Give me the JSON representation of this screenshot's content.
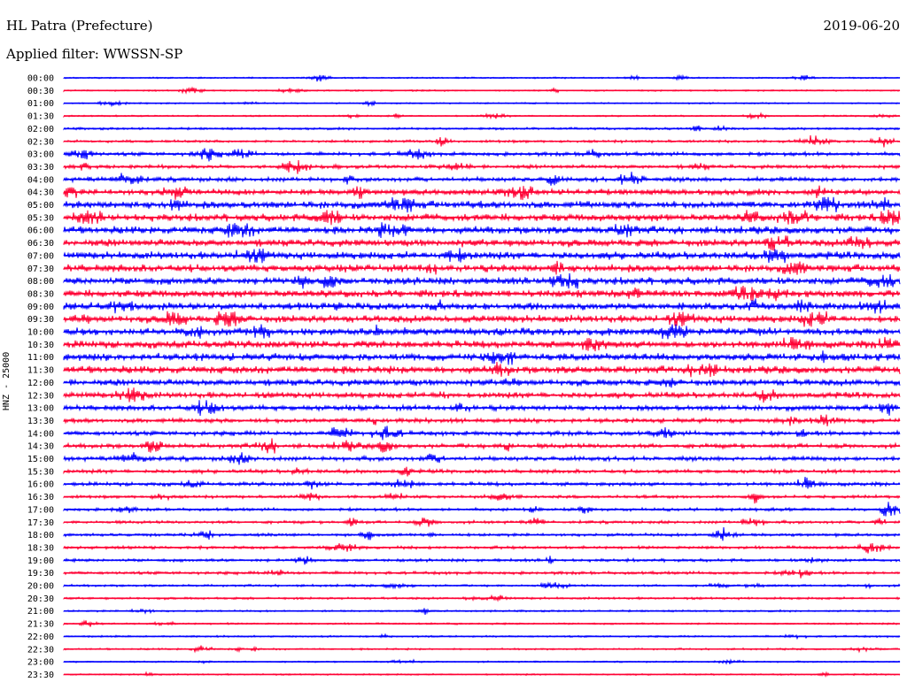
{
  "header": {
    "station": "HL Patra (Prefecture)",
    "date": "2019-06-20",
    "filter": "Applied filter: WWSSN-SP"
  },
  "chart_data": {
    "type": "line",
    "title": "HL Patra (Prefecture)",
    "subtitle": "Applied filter: WWSSN-SP",
    "date": "2019-06-20",
    "ylabel": "HNZ - 25000",
    "xlabel": "",
    "colors": [
      "#0000ff",
      "#ff0033"
    ],
    "rows": [
      {
        "label": "00:00",
        "amp": 1
      },
      {
        "label": "00:30",
        "amp": 1
      },
      {
        "label": "01:00",
        "amp": 1
      },
      {
        "label": "01:30",
        "amp": 1
      },
      {
        "label": "02:00",
        "amp": 1.5
      },
      {
        "label": "02:30",
        "amp": 1.8
      },
      {
        "label": "03:00",
        "amp": 2.5
      },
      {
        "label": "03:30",
        "amp": 2.5
      },
      {
        "label": "04:00",
        "amp": 3
      },
      {
        "label": "04:30",
        "amp": 4
      },
      {
        "label": "05:00",
        "amp": 5
      },
      {
        "label": "05:30",
        "amp": 5
      },
      {
        "label": "06:00",
        "amp": 5
      },
      {
        "label": "06:30",
        "amp": 5
      },
      {
        "label": "07:00",
        "amp": 5
      },
      {
        "label": "07:30",
        "amp": 5
      },
      {
        "label": "08:00",
        "amp": 5
      },
      {
        "label": "08:30",
        "amp": 5
      },
      {
        "label": "09:00",
        "amp": 5
      },
      {
        "label": "09:30",
        "amp": 5
      },
      {
        "label": "10:00",
        "amp": 5
      },
      {
        "label": "10:30",
        "amp": 5
      },
      {
        "label": "11:00",
        "amp": 5
      },
      {
        "label": "11:30",
        "amp": 5
      },
      {
        "label": "12:00",
        "amp": 4.5
      },
      {
        "label": "12:30",
        "amp": 4
      },
      {
        "label": "13:00",
        "amp": 3.5
      },
      {
        "label": "13:30",
        "amp": 3
      },
      {
        "label": "14:00",
        "amp": 3
      },
      {
        "label": "14:30",
        "amp": 3
      },
      {
        "label": "15:00",
        "amp": 3
      },
      {
        "label": "15:30",
        "amp": 2.5
      },
      {
        "label": "16:00",
        "amp": 2.5
      },
      {
        "label": "16:30",
        "amp": 2
      },
      {
        "label": "17:00",
        "amp": 2
      },
      {
        "label": "17:30",
        "amp": 2
      },
      {
        "label": "18:00",
        "amp": 2
      },
      {
        "label": "18:30",
        "amp": 2
      },
      {
        "label": "19:00",
        "amp": 2
      },
      {
        "label": "19:30",
        "amp": 2
      },
      {
        "label": "20:00",
        "amp": 1.5
      },
      {
        "label": "20:30",
        "amp": 1.5
      },
      {
        "label": "21:00",
        "amp": 1.2
      },
      {
        "label": "21:30",
        "amp": 1.2
      },
      {
        "label": "22:00",
        "amp": 1.2
      },
      {
        "label": "22:30",
        "amp": 1.2
      },
      {
        "label": "23:00",
        "amp": 1
      },
      {
        "label": "23:30",
        "amp": 1
      }
    ]
  }
}
